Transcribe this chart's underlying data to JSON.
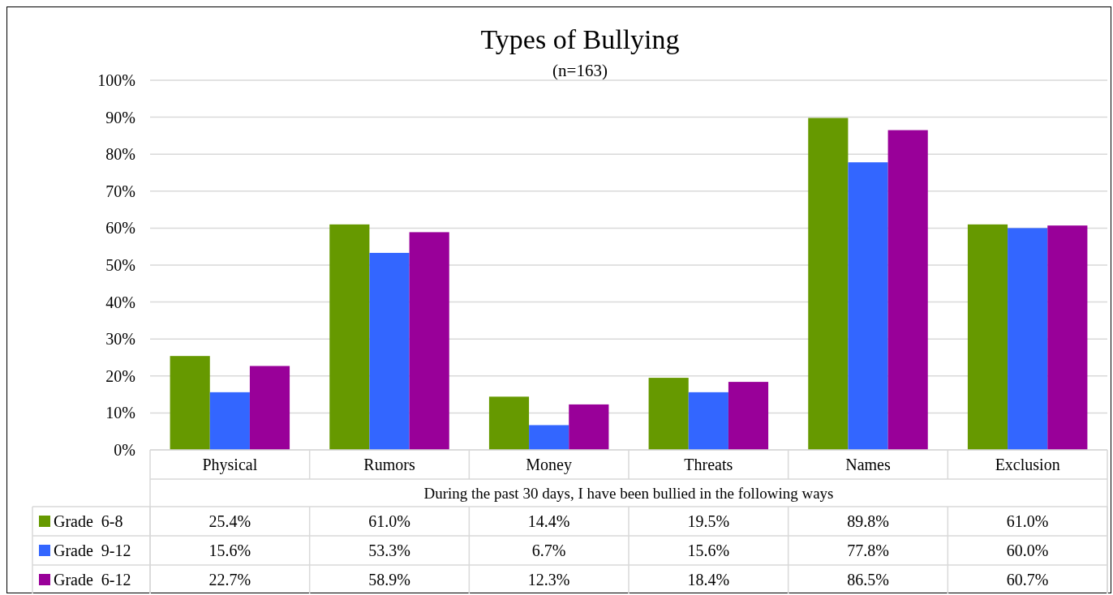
{
  "chart_data": {
    "type": "bar",
    "title": "Types of Bullying",
    "subtitle": "(n=163)",
    "xlabel": "During the past 30 days, I have been bullied in the following ways",
    "categories": [
      "Physical",
      "Rumors",
      "Money",
      "Threats",
      "Names",
      "Exclusion"
    ],
    "series": [
      {
        "name": "Grade  6-8",
        "color": "#669900",
        "values": [
          25.4,
          61.0,
          14.4,
          19.5,
          89.8,
          61.0
        ],
        "value_labels": [
          "25.4%",
          "61.0%",
          "14.4%",
          "19.5%",
          "89.8%",
          "61.0%"
        ]
      },
      {
        "name": "Grade  9-12",
        "color": "#3366ff",
        "values": [
          15.6,
          53.3,
          6.7,
          15.6,
          77.8,
          60.0
        ],
        "value_labels": [
          "15.6%",
          "53.3%",
          "6.7%",
          "15.6%",
          "77.8%",
          "60.0%"
        ]
      },
      {
        "name": "Grade  6-12",
        "color": "#990099",
        "values": [
          22.7,
          58.9,
          12.3,
          18.4,
          86.5,
          60.7
        ],
        "value_labels": [
          "22.7%",
          "58.9%",
          "12.3%",
          "18.4%",
          "86.5%",
          "60.7%"
        ]
      }
    ],
    "ylim": [
      0,
      100
    ],
    "yticks": [
      {
        "value": 0,
        "label": "0%"
      },
      {
        "value": 10,
        "label": "10%"
      },
      {
        "value": 20,
        "label": "20%"
      },
      {
        "value": 30,
        "label": "30%"
      },
      {
        "value": 40,
        "label": "40%"
      },
      {
        "value": 50,
        "label": "50%"
      },
      {
        "value": 60,
        "label": "60%"
      },
      {
        "value": 70,
        "label": "70%"
      },
      {
        "value": 80,
        "label": "80%"
      },
      {
        "value": 90,
        "label": "90%"
      },
      {
        "value": 100,
        "label": "100%"
      }
    ],
    "grid": "y",
    "legend": "bottom left"
  }
}
